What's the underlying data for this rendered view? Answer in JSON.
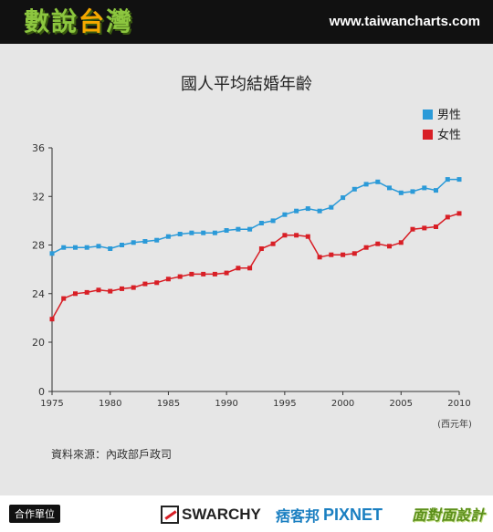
{
  "header": {
    "logo_part1": "數說",
    "logo_part2": "台",
    "logo_part3": "灣",
    "site_url": "www.taiwancharts.com"
  },
  "chart_data": {
    "type": "line",
    "title": "國人平均結婚年齡",
    "xlabel": "",
    "x_unit": "(西元年)",
    "ylabel": "",
    "xlim": [
      1975,
      2010
    ],
    "ylim": [
      0,
      36
    ],
    "y_ticks": [
      0,
      20,
      24,
      28,
      32,
      36
    ],
    "x_ticks": [
      1975,
      1980,
      1985,
      1990,
      1995,
      2000,
      2005,
      2010
    ],
    "legend_position": "top-right",
    "grid": false,
    "x": [
      1975,
      1976,
      1977,
      1978,
      1979,
      1980,
      1981,
      1982,
      1983,
      1984,
      1985,
      1986,
      1987,
      1988,
      1989,
      1990,
      1991,
      1992,
      1993,
      1994,
      1995,
      1996,
      1997,
      1998,
      1999,
      2000,
      2001,
      2002,
      2003,
      2004,
      2005,
      2006,
      2007,
      2008,
      2009,
      2010
    ],
    "series": [
      {
        "name": "男性",
        "color": "#2b9ad8",
        "values": [
          27.3,
          27.8,
          27.8,
          27.8,
          27.9,
          27.7,
          28.0,
          28.2,
          28.3,
          28.4,
          28.7,
          28.9,
          29.0,
          29.0,
          29.0,
          29.2,
          29.3,
          29.3,
          29.8,
          30.0,
          30.5,
          30.8,
          31.0,
          30.8,
          31.1,
          31.9,
          32.6,
          33.0,
          33.2,
          32.7,
          32.3,
          32.4,
          32.7,
          32.5,
          33.4,
          33.4
        ]
      },
      {
        "name": "女性",
        "color": "#d81f26",
        "values": [
          21.9,
          23.6,
          24.0,
          24.1,
          24.3,
          24.2,
          24.4,
          24.5,
          24.8,
          24.9,
          25.2,
          25.4,
          25.6,
          25.6,
          25.6,
          25.7,
          26.1,
          26.1,
          27.7,
          28.1,
          28.8,
          28.8,
          28.7,
          27.0,
          27.2,
          27.2,
          27.3,
          27.8,
          28.1,
          27.9,
          28.2,
          29.3,
          29.4,
          29.5,
          30.3,
          30.6
        ]
      }
    ]
  },
  "source": "資料來源：內政部戶政司",
  "footer": {
    "label": "合作單位",
    "sponsor1": "SWARCHY",
    "sponsor2_cn": "痞客邦",
    "sponsor2_en": "PIXNET",
    "sponsor3": "面對面設計"
  }
}
